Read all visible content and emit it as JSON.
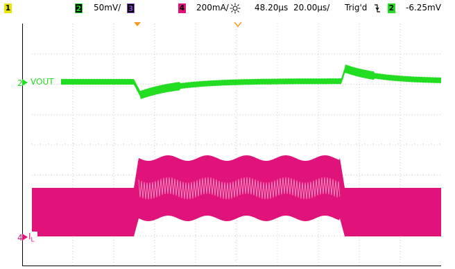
{
  "status_bar": {
    "ch1": {
      "number": "1",
      "scale": ""
    },
    "ch2": {
      "number": "2",
      "scale": "50mV/"
    },
    "ch3": {
      "number": "3",
      "scale": ""
    },
    "ch4": {
      "number": "4",
      "scale": "200mA/"
    },
    "time_offset": "48.20µs",
    "time_scale": "20.00µs/",
    "trigger_status": "Trig'd",
    "trigger_source": "2",
    "trigger_level": "-6.25mV"
  },
  "traces": {
    "vout": {
      "label": "VOUT",
      "channel": "2"
    },
    "il": {
      "label": "IL",
      "channel": "4"
    }
  },
  "colors": {
    "ch1": "#e6e600",
    "ch2": "#22dd22",
    "ch3": "#8844cc",
    "ch4": "#e0137a",
    "grid": "#c8c8c8",
    "marker": "#f59a23"
  }
}
